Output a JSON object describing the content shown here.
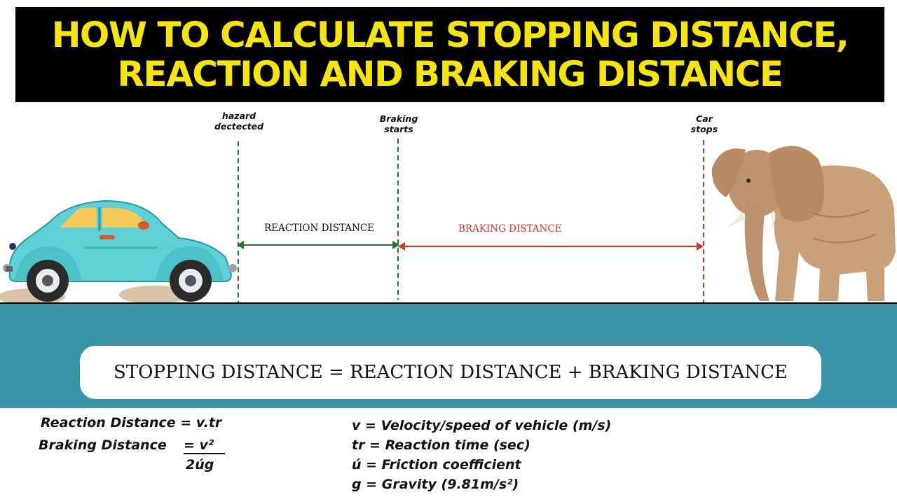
{
  "title": {
    "line1": "HOW TO CALCULATE STOPPING DISTANCE,",
    "line2": "REACTION AND BRAKING DISTANCE"
  },
  "markers": {
    "hazard": "hazard\ndectected",
    "braking": "Braking\nstarts",
    "stop": "Car\nstops"
  },
  "distances": {
    "reaction": "REACTION DISTANCE",
    "braking": "BRAKING DISTANCE"
  },
  "formula_main": "STOPPING DISTANCE = REACTION DISTANCE + BRAKING DISTANCE",
  "formulas": {
    "reaction": "Reaction Distance = v.tr",
    "braking_label": "Braking Distance",
    "braking_numerator": "= v²",
    "braking_denominator": "2úg"
  },
  "legend": [
    "v = Velocity/speed of vehicle (m/s)",
    "tr = Reaction time (sec)",
    "ú = Friction coefficient",
    "g = Gravity (9.81m/s²)"
  ],
  "colors": {
    "title_bg": "#000000",
    "title_text": "#f5e50a",
    "road": "#3a94a8",
    "reaction_line": "#1e7a2e",
    "braking_line": "#d93025",
    "car_body": "#5fd0d6",
    "elephant": "#c9a07a"
  },
  "icons": {
    "vehicle": "car-illustration",
    "obstacle": "elephant-illustration"
  }
}
